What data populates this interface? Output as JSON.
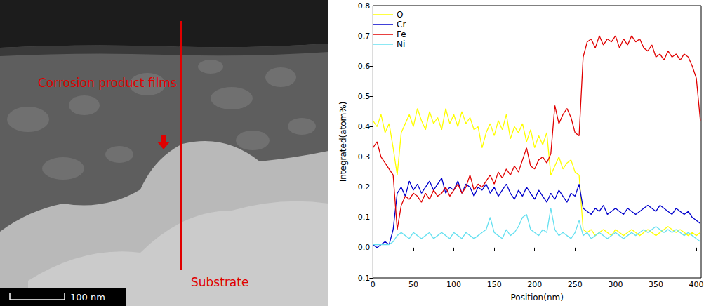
{
  "image_panel": {
    "annotations": [
      "Corrosion product films",
      "Substrate"
    ],
    "scale_bar": "100 nm"
  },
  "chart_data": {
    "type": "line",
    "x_label": "Position(nm)",
    "y_label": "Integrated(atom%)",
    "xlim": [
      0,
      406
    ],
    "xticks": [
      0,
      50,
      100,
      150,
      200,
      250,
      300,
      350,
      400
    ],
    "ylim": [
      -0.1,
      0.8
    ],
    "yticks": [
      -0.1,
      {
        "value": 0,
        "label": "0.0"
      },
      0.1,
      0.2,
      0.3,
      0.4,
      0.5,
      0.6,
      0.7,
      0.8
    ],
    "grid": false,
    "legend": "upper left",
    "x": [
      0,
      5,
      10,
      15,
      20,
      25,
      30,
      35,
      40,
      45,
      50,
      55,
      60,
      65,
      70,
      75,
      80,
      85,
      90,
      95,
      100,
      105,
      110,
      115,
      120,
      125,
      130,
      135,
      140,
      145,
      150,
      155,
      160,
      165,
      170,
      175,
      180,
      185,
      190,
      195,
      200,
      205,
      210,
      215,
      220,
      225,
      230,
      235,
      240,
      245,
      250,
      255,
      260,
      265,
      270,
      275,
      280,
      285,
      290,
      295,
      300,
      305,
      310,
      315,
      320,
      325,
      330,
      335,
      340,
      345,
      350,
      355,
      360,
      365,
      370,
      375,
      380,
      385,
      390,
      395,
      400,
      405
    ],
    "series": [
      {
        "name": "O",
        "color": "#ffff00",
        "values": [
          0.42,
          0.4,
          0.44,
          0.38,
          0.41,
          0.33,
          0.24,
          0.38,
          0.41,
          0.44,
          0.4,
          0.46,
          0.42,
          0.39,
          0.45,
          0.41,
          0.43,
          0.39,
          0.46,
          0.41,
          0.44,
          0.4,
          0.45,
          0.41,
          0.43,
          0.39,
          0.4,
          0.33,
          0.38,
          0.41,
          0.37,
          0.42,
          0.39,
          0.44,
          0.36,
          0.4,
          0.38,
          0.41,
          0.35,
          0.39,
          0.33,
          0.37,
          0.34,
          0.38,
          0.24,
          0.27,
          0.3,
          0.26,
          0.28,
          0.29,
          0.25,
          0.24,
          0.06,
          0.05,
          0.06,
          0.04,
          0.05,
          0.06,
          0.05,
          0.04,
          0.06,
          0.05,
          0.04,
          0.05,
          0.06,
          0.05,
          0.04,
          0.05,
          0.06,
          0.05,
          0.04,
          0.05,
          0.06,
          0.07,
          0.06,
          0.05,
          0.06,
          0.05,
          0.04,
          0.05,
          0.04,
          0.05
        ]
      },
      {
        "name": "Cr",
        "color": "#0000cc",
        "values": [
          0.01,
          0.0,
          0.01,
          0.02,
          0.01,
          0.06,
          0.18,
          0.2,
          0.17,
          0.22,
          0.19,
          0.21,
          0.18,
          0.2,
          0.22,
          0.19,
          0.21,
          0.23,
          0.18,
          0.2,
          0.19,
          0.22,
          0.18,
          0.21,
          0.2,
          0.17,
          0.2,
          0.19,
          0.21,
          0.18,
          0.2,
          0.17,
          0.19,
          0.21,
          0.18,
          0.16,
          0.19,
          0.17,
          0.2,
          0.18,
          0.16,
          0.19,
          0.17,
          0.15,
          0.18,
          0.16,
          0.19,
          0.17,
          0.15,
          0.18,
          0.17,
          0.21,
          0.13,
          0.12,
          0.11,
          0.13,
          0.12,
          0.14,
          0.11,
          0.12,
          0.13,
          0.12,
          0.11,
          0.13,
          0.12,
          0.11,
          0.12,
          0.13,
          0.14,
          0.13,
          0.12,
          0.14,
          0.13,
          0.12,
          0.11,
          0.13,
          0.12,
          0.11,
          0.12,
          0.1,
          0.09,
          0.08
        ]
      },
      {
        "name": "Fe",
        "color": "#e00000",
        "values": [
          0.33,
          0.35,
          0.3,
          0.28,
          0.26,
          0.24,
          0.06,
          0.14,
          0.17,
          0.16,
          0.18,
          0.17,
          0.15,
          0.18,
          0.16,
          0.19,
          0.17,
          0.18,
          0.2,
          0.17,
          0.19,
          0.21,
          0.18,
          0.2,
          0.24,
          0.19,
          0.21,
          0.2,
          0.22,
          0.24,
          0.21,
          0.25,
          0.23,
          0.26,
          0.24,
          0.27,
          0.25,
          0.29,
          0.33,
          0.27,
          0.26,
          0.29,
          0.3,
          0.28,
          0.31,
          0.47,
          0.41,
          0.44,
          0.46,
          0.43,
          0.38,
          0.37,
          0.63,
          0.68,
          0.69,
          0.66,
          0.7,
          0.67,
          0.69,
          0.68,
          0.7,
          0.66,
          0.69,
          0.67,
          0.7,
          0.68,
          0.69,
          0.66,
          0.65,
          0.67,
          0.63,
          0.64,
          0.62,
          0.65,
          0.63,
          0.64,
          0.62,
          0.64,
          0.63,
          0.6,
          0.56,
          0.42
        ]
      },
      {
        "name": "Ni",
        "color": "#66e0f0",
        "values": [
          0.01,
          0.01,
          0.01,
          0.01,
          0.01,
          0.02,
          0.04,
          0.05,
          0.04,
          0.03,
          0.05,
          0.04,
          0.03,
          0.04,
          0.05,
          0.03,
          0.04,
          0.05,
          0.04,
          0.03,
          0.05,
          0.04,
          0.03,
          0.05,
          0.04,
          0.03,
          0.04,
          0.05,
          0.06,
          0.1,
          0.05,
          0.04,
          0.03,
          0.06,
          0.04,
          0.05,
          0.07,
          0.1,
          0.11,
          0.06,
          0.05,
          0.04,
          0.06,
          0.05,
          0.13,
          0.06,
          0.04,
          0.05,
          0.04,
          0.03,
          0.05,
          0.09,
          0.04,
          0.05,
          0.03,
          0.04,
          0.05,
          0.04,
          0.03,
          0.04,
          0.05,
          0.04,
          0.03,
          0.04,
          0.05,
          0.04,
          0.05,
          0.06,
          0.05,
          0.06,
          0.07,
          0.06,
          0.05,
          0.06,
          0.05,
          0.06,
          0.05,
          0.04,
          0.05,
          0.04,
          0.03,
          0.02
        ]
      }
    ]
  }
}
